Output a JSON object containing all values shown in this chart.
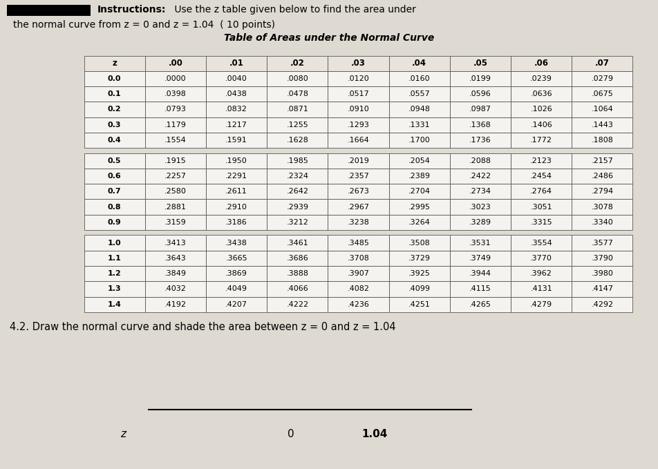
{
  "instructions_bold": "Instructions:",
  "instructions_rest": " Use the z table given below to find the area under",
  "instructions_line2": "the normal curve from z = 0 and z = 1.04  ( 10 points)",
  "table_title": "Table of Areas under the Normal Curve",
  "col_headers": [
    "z",
    ".00",
    ".01",
    ".02",
    ".03",
    ".04",
    ".05",
    ".06",
    ".07"
  ],
  "table_data": [
    [
      "0.0",
      ".0000",
      ".0040",
      ".0080",
      ".0120",
      ".0160",
      ".0199",
      ".0239",
      ".0279"
    ],
    [
      "0.1",
      ".0398",
      ".0438",
      ".0478",
      ".0517",
      ".0557",
      ".0596",
      ".0636",
      ".0675"
    ],
    [
      "0.2",
      ".0793",
      ".0832",
      ".0871",
      ".0910",
      ".0948",
      ".0987",
      ".1026",
      ".1064"
    ],
    [
      "0.3",
      ".1179",
      ".1217",
      ".1255",
      ".1293",
      ".1331",
      ".1368",
      ".1406",
      ".1443"
    ],
    [
      "0.4",
      ".1554",
      ".1591",
      ".1628",
      ".1664",
      ".1700",
      ".1736",
      ".1772",
      ".1808"
    ],
    [
      "0.5",
      ".1915",
      ".1950",
      ".1985",
      ".2019",
      ".2054",
      ".2088",
      ".2123",
      ".2157"
    ],
    [
      "0.6",
      ".2257",
      ".2291",
      ".2324",
      ".2357",
      ".2389",
      ".2422",
      ".2454",
      ".2486"
    ],
    [
      "0.7",
      ".2580",
      ".2611",
      ".2642",
      ".2673",
      ".2704",
      ".2734",
      ".2764",
      ".2794"
    ],
    [
      "0.8",
      ".2881",
      ".2910",
      ".2939",
      ".2967",
      ".2995",
      ".3023",
      ".3051",
      ".3078"
    ],
    [
      "0.9",
      ".3159",
      ".3186",
      ".3212",
      ".3238",
      ".3264",
      ".3289",
      ".3315",
      ".3340"
    ],
    [
      "1.0",
      ".3413",
      ".3438",
      ".3461",
      ".3485",
      ".3508",
      ".3531",
      ".3554",
      ".3577"
    ],
    [
      "1.1",
      ".3643",
      ".3665",
      ".3686",
      ".3708",
      ".3729",
      ".3749",
      ".3770",
      ".3790"
    ],
    [
      "1.2",
      ".3849",
      ".3869",
      ".3888",
      ".3907",
      ".3925",
      ".3944",
      ".3962",
      ".3980"
    ],
    [
      "1.3",
      ".4032",
      ".4049",
      ".4066",
      ".4082",
      ".4099",
      ".4115",
      ".4131",
      ".4147"
    ],
    [
      "1.4",
      ".4192",
      ".4207",
      ".4222",
      ".4236",
      ".4251",
      ".4265",
      ".4279",
      ".4292"
    ]
  ],
  "section4_text": "4.2. Draw the normal curve and shade the area between z = 0 and z = 1.04",
  "axis_label_z": "z",
  "axis_label_0": "0",
  "axis_label_104": "1.04",
  "page_bg": "#dedad2"
}
